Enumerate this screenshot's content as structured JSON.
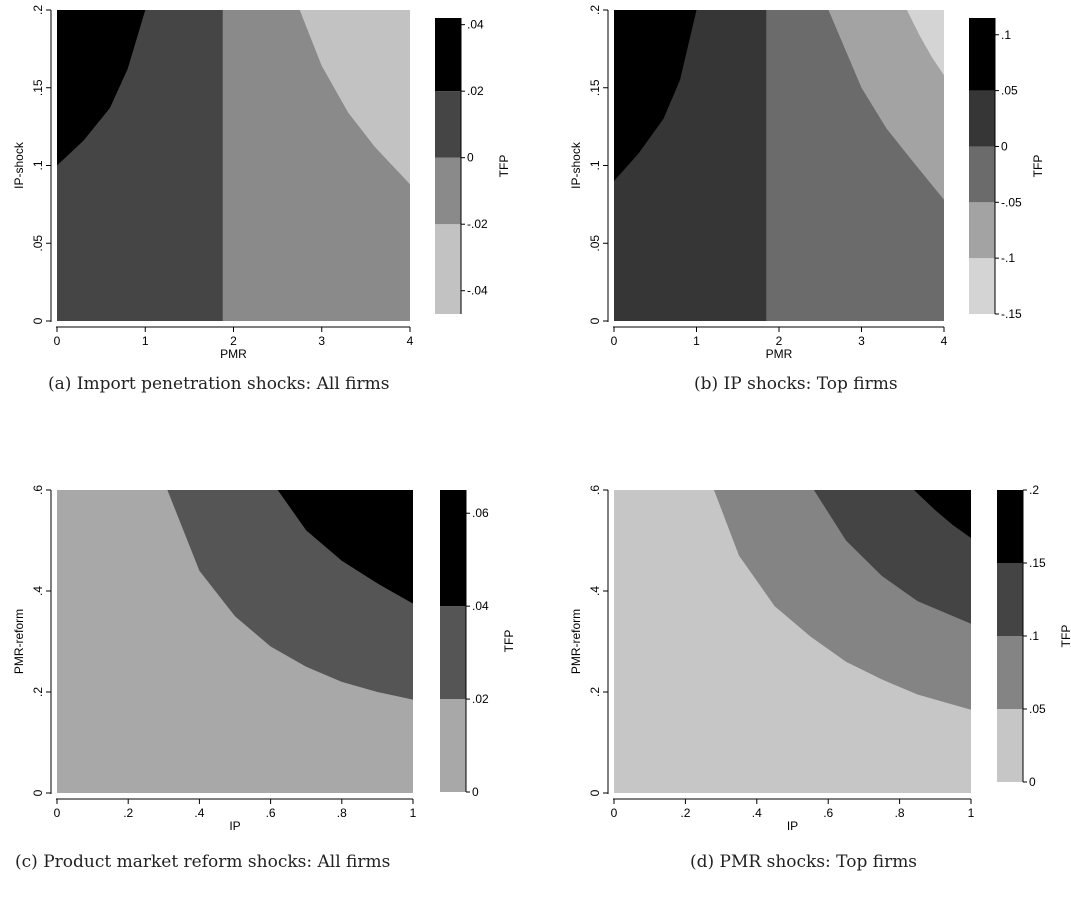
{
  "chart_data": [
    {
      "type": "heatmap",
      "panel": "a",
      "caption": "(a) Import penetration shocks: All firms",
      "xlabel": "PMR",
      "ylabel": "IP-shock",
      "xlim": [
        0,
        4
      ],
      "ylim": [
        0,
        0.2
      ],
      "xticks": [
        {
          "v": 0,
          "label": "0"
        },
        {
          "v": 1,
          "label": "1"
        },
        {
          "v": 2,
          "label": "2"
        },
        {
          "v": 3,
          "label": "3"
        },
        {
          "v": 4,
          "label": "4"
        }
      ],
      "yticks": [
        {
          "v": 0,
          "label": "0"
        },
        {
          "v": 0.05,
          "label": ".05"
        },
        {
          "v": 0.1,
          "label": ".1"
        },
        {
          "v": 0.15,
          "label": ".15"
        },
        {
          "v": 0.2,
          "label": ".2"
        }
      ],
      "colorbar": {
        "label": "TFP",
        "range": [
          -0.047,
          0.042
        ],
        "bounds": [
          -0.02,
          0,
          0.02
        ],
        "colors": [
          "#c2c2c2",
          "#8a8a8a",
          "#454545",
          "#000000"
        ],
        "ticks": [
          {
            "v": 0.04,
            "label": ".04"
          },
          {
            "v": 0.02,
            "label": ".02"
          },
          {
            "v": 0,
            "label": "0"
          },
          {
            "v": -0.02,
            "label": "-.02"
          },
          {
            "v": -0.04,
            "label": "-.04"
          }
        ]
      },
      "regions": [
        {
          "color": "#454545",
          "x": [
            0,
            1.88
          ],
          "y": [
            0,
            0.2
          ],
          "band_tfp": [
            0,
            0.02
          ]
        },
        {
          "color": "#8a8a8a",
          "x": [
            1.88,
            4
          ],
          "y": [
            0,
            0.2
          ],
          "band_tfp": [
            -0.02,
            0
          ]
        },
        {
          "color": "#c2c2c2",
          "boundary": [
            [
              2.75,
              0.2
            ],
            [
              3.0,
              0.164
            ],
            [
              3.3,
              0.134
            ],
            [
              3.6,
              0.112
            ],
            [
              4.0,
              0.088
            ]
          ],
          "band_tfp": [
            -0.047,
            -0.02
          ]
        },
        {
          "color": "#000000",
          "boundary": [
            [
              1.0,
              0.2
            ],
            [
              0.8,
              0.162
            ],
            [
              0.6,
              0.137
            ],
            [
              0.3,
              0.116
            ],
            [
              0.0,
              0.1
            ]
          ],
          "band_tfp": [
            0.02,
            0.042
          ]
        }
      ]
    },
    {
      "type": "heatmap",
      "panel": "b",
      "caption": "(b) IP shocks: Top firms",
      "xlabel": "PMR",
      "ylabel": "IP-shock",
      "xlim": [
        0,
        4
      ],
      "ylim": [
        0,
        0.2
      ],
      "xticks": [
        {
          "v": 0,
          "label": "0"
        },
        {
          "v": 1,
          "label": "1"
        },
        {
          "v": 2,
          "label": "2"
        },
        {
          "v": 3,
          "label": "3"
        },
        {
          "v": 4,
          "label": "4"
        }
      ],
      "yticks": [
        {
          "v": 0,
          "label": "0"
        },
        {
          "v": 0.05,
          "label": ".05"
        },
        {
          "v": 0.1,
          "label": ".1"
        },
        {
          "v": 0.15,
          "label": ".15"
        },
        {
          "v": 0.2,
          "label": ".2"
        }
      ],
      "colorbar": {
        "label": "TFP",
        "range": [
          -0.15,
          0.115
        ],
        "bounds": [
          -0.1,
          -0.05,
          0,
          0.05
        ],
        "colors": [
          "#d4d4d4",
          "#a3a3a3",
          "#6b6b6b",
          "#363636",
          "#000000"
        ],
        "ticks": [
          {
            "v": 0.1,
            "label": ".1"
          },
          {
            "v": 0.05,
            "label": ".05"
          },
          {
            "v": 0,
            "label": "0"
          },
          {
            "v": -0.05,
            "label": "-.05"
          },
          {
            "v": -0.1,
            "label": "-.1"
          },
          {
            "v": -0.15,
            "label": "-.15"
          }
        ]
      },
      "regions": [
        {
          "color": "#363636",
          "x": [
            0,
            1.85
          ],
          "y": [
            0,
            0.2
          ],
          "band_tfp": [
            0,
            0.05
          ]
        },
        {
          "color": "#6b6b6b",
          "x": [
            1.85,
            4
          ],
          "y": [
            0,
            0.2
          ],
          "band_tfp": [
            -0.05,
            0
          ]
        },
        {
          "color": "#a3a3a3",
          "boundary": [
            [
              2.6,
              0.2
            ],
            [
              3.0,
              0.15
            ],
            [
              3.3,
              0.124
            ],
            [
              3.6,
              0.104
            ],
            [
              4.0,
              0.078
            ]
          ],
          "band_tfp": [
            -0.1,
            -0.05
          ]
        },
        {
          "color": "#d4d4d4",
          "boundary": [
            [
              3.55,
              0.2
            ],
            [
              3.7,
              0.184
            ],
            [
              3.85,
              0.17
            ],
            [
              4.0,
              0.158
            ]
          ],
          "band_tfp": [
            -0.15,
            -0.1
          ]
        },
        {
          "color": "#000000",
          "boundary": [
            [
              1.0,
              0.2
            ],
            [
              0.8,
              0.155
            ],
            [
              0.6,
              0.13
            ],
            [
              0.3,
              0.108
            ],
            [
              0.0,
              0.09
            ]
          ],
          "band_tfp": [
            0.05,
            0.115
          ]
        }
      ]
    },
    {
      "type": "heatmap",
      "panel": "c",
      "caption": "(c) Product market reform shocks: All firms",
      "xlabel": "IP",
      "ylabel": "PMR-reform",
      "xlim": [
        0,
        1
      ],
      "ylim": [
        0,
        0.6
      ],
      "xticks": [
        {
          "v": 0,
          "label": "0"
        },
        {
          "v": 0.2,
          "label": ".2"
        },
        {
          "v": 0.4,
          "label": ".4"
        },
        {
          "v": 0.6,
          "label": ".6"
        },
        {
          "v": 0.8,
          "label": ".8"
        },
        {
          "v": 1,
          "label": "1"
        }
      ],
      "yticks": [
        {
          "v": 0,
          "label": "0"
        },
        {
          "v": 0.2,
          "label": ".2"
        },
        {
          "v": 0.4,
          "label": ".4"
        },
        {
          "v": 0.6,
          "label": ".6"
        }
      ],
      "colorbar": {
        "label": "TFP",
        "range": [
          0,
          0.065
        ],
        "bounds": [
          0.02,
          0.04
        ],
        "colors": [
          "#a8a8a8",
          "#555555",
          "#000000"
        ],
        "ticks": [
          {
            "v": 0.06,
            "label": ".06"
          },
          {
            "v": 0.04,
            "label": ".04"
          },
          {
            "v": 0.02,
            "label": ".02"
          },
          {
            "v": 0,
            "label": "0"
          }
        ]
      },
      "regions": [
        {
          "color": "#a8a8a8",
          "x": [
            0,
            1
          ],
          "y": [
            0,
            0.6
          ],
          "band_tfp": [
            0,
            0.02
          ]
        },
        {
          "color": "#555555",
          "boundary": [
            [
              0.31,
              0.6
            ],
            [
              0.4,
              0.44
            ],
            [
              0.5,
              0.35
            ],
            [
              0.6,
              0.29
            ],
            [
              0.7,
              0.25
            ],
            [
              0.8,
              0.22
            ],
            [
              0.9,
              0.2
            ],
            [
              1.0,
              0.185
            ]
          ],
          "band_tfp": [
            0.02,
            0.04
          ]
        },
        {
          "color": "#000000",
          "boundary": [
            [
              0.62,
              0.6
            ],
            [
              0.7,
              0.52
            ],
            [
              0.8,
              0.46
            ],
            [
              0.9,
              0.415
            ],
            [
              1.0,
              0.375
            ]
          ],
          "band_tfp": [
            0.04,
            0.065
          ]
        }
      ]
    },
    {
      "type": "heatmap",
      "panel": "d",
      "caption": "(d) PMR shocks: Top firms",
      "xlabel": "IP",
      "ylabel": "PMR-reform",
      "xlim": [
        0,
        1
      ],
      "ylim": [
        0,
        0.6
      ],
      "xticks": [
        {
          "v": 0,
          "label": "0"
        },
        {
          "v": 0.2,
          "label": ".2"
        },
        {
          "v": 0.4,
          "label": ".4"
        },
        {
          "v": 0.6,
          "label": ".6"
        },
        {
          "v": 0.8,
          "label": ".8"
        },
        {
          "v": 1,
          "label": "1"
        }
      ],
      "yticks": [
        {
          "v": 0,
          "label": "0"
        },
        {
          "v": 0.2,
          "label": ".2"
        },
        {
          "v": 0.4,
          "label": ".4"
        },
        {
          "v": 0.6,
          "label": ".6"
        }
      ],
      "colorbar": {
        "label": "TFP",
        "range": [
          0,
          0.2
        ],
        "bounds": [
          0.05,
          0.1,
          0.15
        ],
        "colors": [
          "#c6c6c6",
          "#848484",
          "#444444",
          "#000000"
        ],
        "ticks": [
          {
            "v": 0.2,
            "label": ".2"
          },
          {
            "v": 0.15,
            "label": ".15"
          },
          {
            "v": 0.1,
            "label": ".1"
          },
          {
            "v": 0.05,
            "label": ".05"
          },
          {
            "v": 0,
            "label": "0"
          }
        ]
      },
      "regions": [
        {
          "color": "#c6c6c6",
          "x": [
            0,
            1
          ],
          "y": [
            0,
            0.6
          ],
          "band_tfp": [
            0,
            0.05
          ]
        },
        {
          "color": "#848484",
          "boundary": [
            [
              0.28,
              0.6
            ],
            [
              0.35,
              0.47
            ],
            [
              0.45,
              0.37
            ],
            [
              0.55,
              0.31
            ],
            [
              0.65,
              0.26
            ],
            [
              0.75,
              0.225
            ],
            [
              0.85,
              0.195
            ],
            [
              1.0,
              0.165
            ]
          ],
          "band_tfp": [
            0.05,
            0.1
          ]
        },
        {
          "color": "#444444",
          "boundary": [
            [
              0.56,
              0.6
            ],
            [
              0.65,
              0.5
            ],
            [
              0.75,
              0.43
            ],
            [
              0.85,
              0.38
            ],
            [
              1.0,
              0.335
            ]
          ],
          "band_tfp": [
            0.1,
            0.15
          ]
        },
        {
          "color": "#000000",
          "boundary": [
            [
              0.84,
              0.6
            ],
            [
              0.9,
              0.56
            ],
            [
              0.95,
              0.53
            ],
            [
              1.0,
              0.505
            ]
          ],
          "band_tfp": [
            0.15,
            0.2
          ]
        }
      ]
    }
  ]
}
